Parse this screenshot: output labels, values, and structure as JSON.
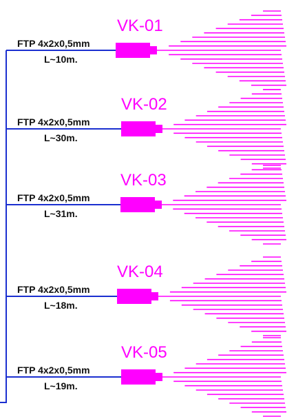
{
  "colors": {
    "camera": "#ff00ff",
    "wire": "#1a2fd0",
    "text": "#111111"
  },
  "icons": [
    "camera-body-icon",
    "camera-lens-icon",
    "field-of-view-icon"
  ],
  "cameras": [
    {
      "id": "VK-01",
      "cable": "FTP 4x2x0,5mm",
      "length": "L~10m."
    },
    {
      "id": "VK-02",
      "cable": "FTP 4x2x0,5mm",
      "length": "L~30m."
    },
    {
      "id": "VK-03",
      "cable": "FTP 4x2x0,5mm",
      "length": "L~31m."
    },
    {
      "id": "VK-04",
      "cable": "FTP 4x2x0,5mm",
      "length": "L~18m."
    },
    {
      "id": "VK-05",
      "cable": "FTP 4x2x0,5mm",
      "length": "L~19m."
    }
  ]
}
